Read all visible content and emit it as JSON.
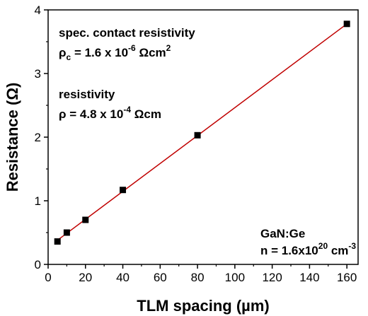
{
  "chart_data": {
    "type": "scatter",
    "xlabel": "TLM spacing (µm)",
    "ylabel": "Resistance (Ω)",
    "xlim": [
      0,
      166
    ],
    "ylim": [
      0,
      4
    ],
    "xticks": [
      0,
      20,
      40,
      60,
      80,
      100,
      120,
      140,
      160
    ],
    "yticks": [
      0,
      1,
      2,
      3,
      4
    ],
    "grid": false,
    "marker_color": "#000000",
    "fit_color": "#c00000",
    "points": [
      {
        "x": 5,
        "y": 0.36
      },
      {
        "x": 10,
        "y": 0.5
      },
      {
        "x": 20,
        "y": 0.7
      },
      {
        "x": 40,
        "y": 1.17
      },
      {
        "x": 80,
        "y": 2.03
      },
      {
        "x": 160,
        "y": 3.78
      }
    ],
    "fit_line": {
      "x": [
        5,
        160
      ],
      "y": [
        0.38,
        3.78
      ]
    },
    "annotations": {
      "contact_title": "spec. contact resistivity",
      "contact_symbol": "ρ",
      "contact_sub": "c",
      "contact_value": " = 1.6 x 10",
      "contact_exp": "-6",
      "contact_unit": " Ωcm",
      "contact_unit_exp": "2",
      "resist_title": "resistivity",
      "resist_value": "ρ = 4.8 x 10",
      "resist_exp": "-4",
      "resist_unit": " Ωcm",
      "material": "GaN:Ge",
      "conc_value": "n = 1.6x10",
      "conc_exp": "20",
      "conc_unit": " cm",
      "conc_unit_exp": "-3"
    }
  }
}
